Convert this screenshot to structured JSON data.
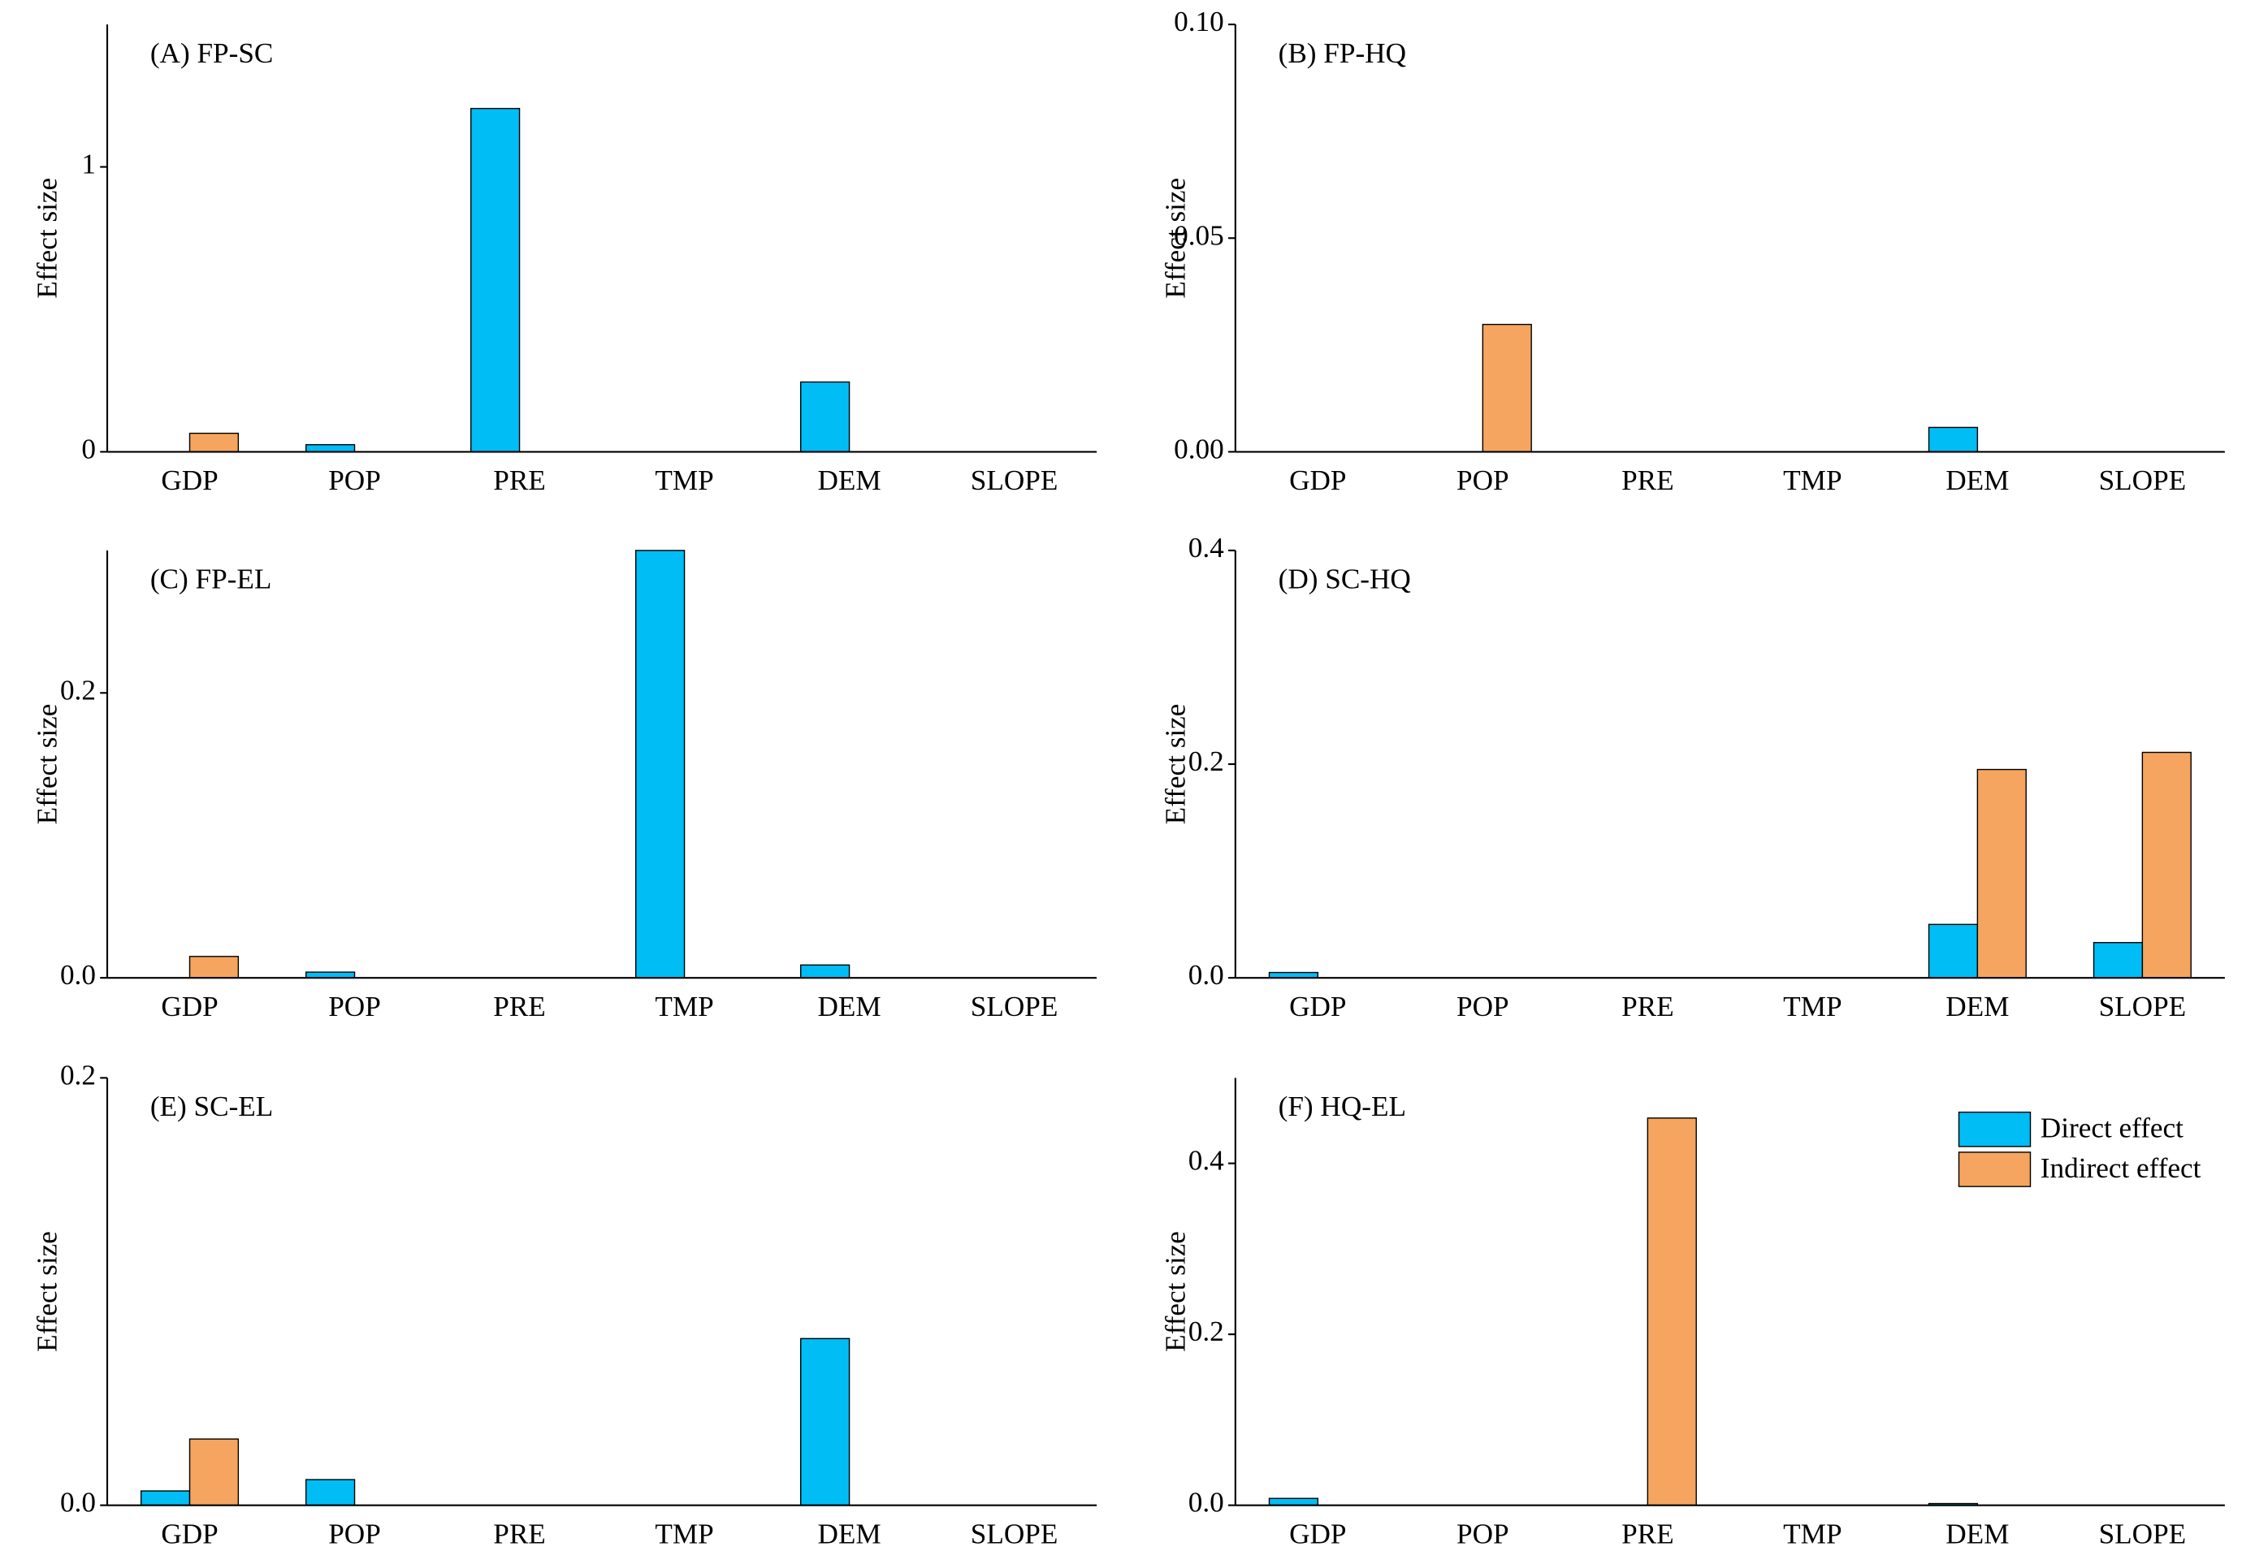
{
  "chart_data": [
    {
      "type": "bar",
      "title": "(A) FP-SC",
      "y_label": "Effect size",
      "categories": [
        "GDP",
        "POP",
        "PRE",
        "TMP",
        "DEM",
        "SLOPE"
      ],
      "series": [
        {
          "color": "#00bdf5",
          "values": [
            0,
            0.025,
            1.205,
            0,
            0.245,
            0
          ]
        },
        {
          "color": "#f5a55f",
          "values": [
            0.065,
            0,
            0,
            0,
            0,
            0
          ]
        }
      ],
      "ylim": [
        0,
        1.5
      ],
      "yticks": [
        0,
        1
      ]
    },
    {
      "type": "bar",
      "title": "(B) FP-HQ",
      "y_label": "Effect size",
      "categories": [
        "GDP",
        "POP",
        "PRE",
        "TMP",
        "DEM",
        "SLOPE"
      ],
      "series": [
        {
          "color": "#00bdf5",
          "values": [
            0,
            0,
            0,
            0,
            0.0057,
            0
          ]
        },
        {
          "color": "#f5a55f",
          "values": [
            0,
            0.0298,
            0,
            0,
            0,
            0
          ]
        }
      ],
      "ylim": [
        0,
        0.1
      ],
      "yticks": [
        {
          "value": 0,
          "label": "0.00"
        },
        {
          "value": 0.05,
          "label": "0.05"
        },
        {
          "value": 0.1,
          "label": "0.10"
        }
      ]
    },
    {
      "type": "bar",
      "title": "(C) FP-EL",
      "y_label": "Effect size",
      "categories": [
        "GDP",
        "POP",
        "PRE",
        "TMP",
        "DEM",
        "SLOPE"
      ],
      "series": [
        {
          "color": "#00bdf5",
          "values": [
            0,
            0.004,
            0,
            0.3,
            0.009,
            0
          ]
        },
        {
          "color": "#f5a55f",
          "values": [
            0.015,
            0,
            0,
            0,
            0,
            0
          ]
        }
      ],
      "ylim": [
        0,
        0.3
      ],
      "yticks": [
        {
          "value": 0,
          "label": "0.0"
        },
        {
          "value": 0.2,
          "label": "0.2"
        }
      ]
    },
    {
      "type": "bar",
      "title": "(D) SC-HQ",
      "y_label": "Effect size",
      "categories": [
        "GDP",
        "POP",
        "PRE",
        "TMP",
        "DEM",
        "SLOPE"
      ],
      "series": [
        {
          "color": "#00bdf5",
          "values": [
            0.005,
            0,
            0,
            0,
            0.05,
            0.033
          ]
        },
        {
          "color": "#f5a55f",
          "values": [
            0,
            0,
            0,
            0,
            0.195,
            0.211
          ]
        }
      ],
      "ylim": [
        0,
        0.4
      ],
      "yticks": [
        {
          "value": 0,
          "label": "0.0"
        },
        {
          "value": 0.2,
          "label": "0.2"
        },
        {
          "value": 0.4,
          "label": "0.4"
        }
      ]
    },
    {
      "type": "bar",
      "title": "(E) SC-EL",
      "y_label": "Effect size",
      "categories": [
        "GDP",
        "POP",
        "PRE",
        "TMP",
        "DEM",
        "SLOPE"
      ],
      "series": [
        {
          "color": "#00bdf5",
          "values": [
            0.0067,
            0.012,
            0,
            0,
            0.078,
            0
          ]
        },
        {
          "color": "#f5a55f",
          "values": [
            0.031,
            0,
            0,
            0,
            0,
            0
          ]
        }
      ],
      "ylim": [
        0,
        0.2
      ],
      "yticks": [
        {
          "value": 0,
          "label": "0.0"
        },
        {
          "value": 0.2,
          "label": "0.2"
        }
      ]
    },
    {
      "type": "bar",
      "title": "(F) HQ-EL",
      "y_label": "Effect size",
      "categories": [
        "GDP",
        "POP",
        "PRE",
        "TMP",
        "DEM",
        "SLOPE"
      ],
      "series": [
        {
          "name": "Direct effect",
          "color": "#00bdf5",
          "values": [
            0.008,
            0,
            0,
            0,
            0.002,
            0
          ]
        },
        {
          "name": "Indirect effect",
          "color": "#f5a55f",
          "values": [
            0,
            0,
            0.453,
            0,
            0,
            0
          ]
        }
      ],
      "ylim": [
        0,
        0.5
      ],
      "yticks": [
        {
          "value": 0,
          "label": "0.0"
        },
        {
          "value": 0.2,
          "label": "0.2"
        },
        {
          "value": 0.4,
          "label": "0.4"
        }
      ],
      "legend": "upper right"
    }
  ]
}
